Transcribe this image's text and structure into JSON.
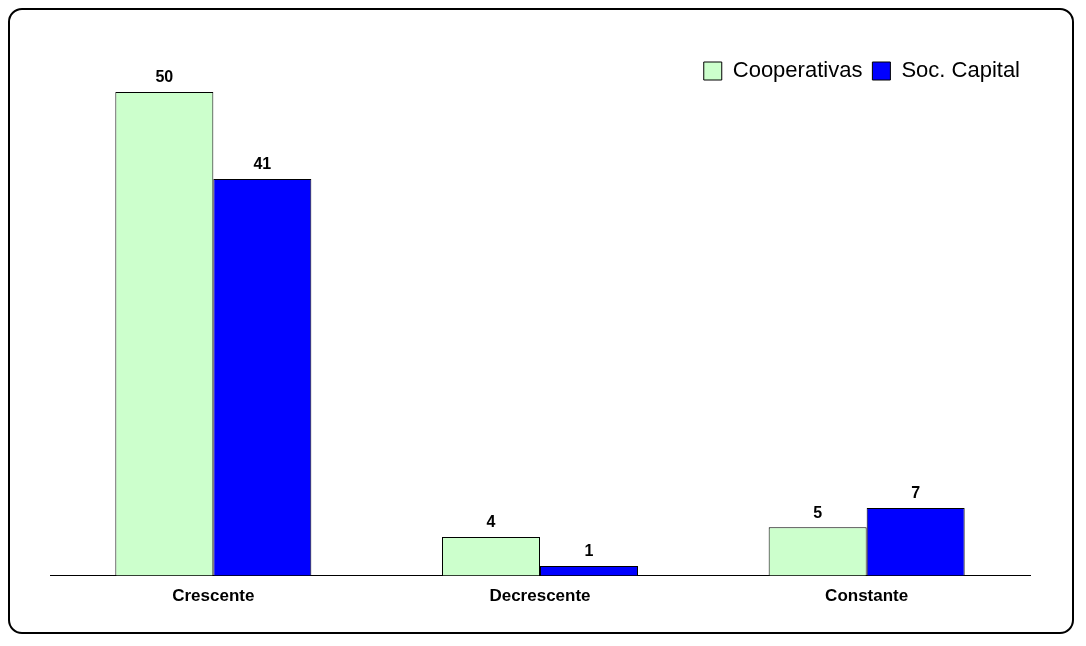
{
  "chart_data": {
    "type": "bar",
    "categories": [
      "Crescente",
      "Decrescente",
      "Constante"
    ],
    "series": [
      {
        "name": "Cooperativas",
        "color": "#ccffcc",
        "values": [
          50,
          4,
          5
        ]
      },
      {
        "name": "Soc. Capital",
        "color": "#0000ff",
        "values": [
          41,
          1,
          7
        ]
      }
    ],
    "data_labels": true,
    "grid": false,
    "legend": "top right",
    "tick_labels": "x"
  }
}
